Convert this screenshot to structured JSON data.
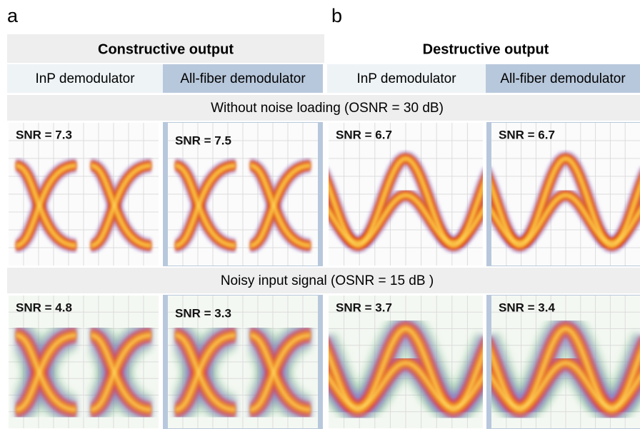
{
  "panel_labels": [
    "a",
    "b"
  ],
  "headers": [
    "Constructive output",
    "Destructive output"
  ],
  "subheaders": [
    "InP demodulator",
    "All-fiber demodulator",
    "InP demodulator",
    "All-fiber demodulator"
  ],
  "rows": [
    {
      "label": "Without noise loading (OSNR = 30 dB)",
      "snr": [
        "SNR = 7.3",
        "SNR = 7.5",
        "SNR = 6.7",
        "SNR = 6.7"
      ]
    },
    {
      "label": "Noisy input signal (OSNR = 15 dB )",
      "snr": [
        "SNR = 4.8",
        "SNR = 3.3",
        "SNR = 3.7",
        "SNR = 3.4"
      ]
    }
  ]
}
